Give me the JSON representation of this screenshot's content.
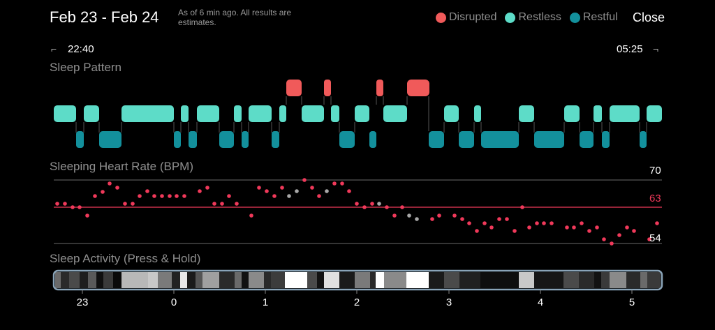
{
  "header": {
    "title": "Feb 23 - Feb 24",
    "note": "As of 6 min ago. All results are estimates.",
    "close_label": "Close"
  },
  "legend": [
    {
      "label": "Disrupted",
      "color": "#f05a5a"
    },
    {
      "label": "Restless",
      "color": "#5ddcc8"
    },
    {
      "label": "Restful",
      "color": "#13909c"
    }
  ],
  "time_range": {
    "start": "22:40",
    "end": "05:25"
  },
  "sections": {
    "sleep_pattern": "Sleep Pattern",
    "heart_rate": "Sleeping Heart Rate (BPM)",
    "activity": "Sleep Activity (Press & Hold)"
  },
  "heart_rate": {
    "high": "70",
    "avg": "63",
    "low": "54",
    "colors": {
      "valid": "#f0395a",
      "missing": "#a8a8a8",
      "avg_line": "#f0395a",
      "ref_line": "#6a6a6a"
    }
  },
  "hour_axis": [
    "23",
    "0",
    "1",
    "2",
    "3",
    "4",
    "5"
  ]
}
